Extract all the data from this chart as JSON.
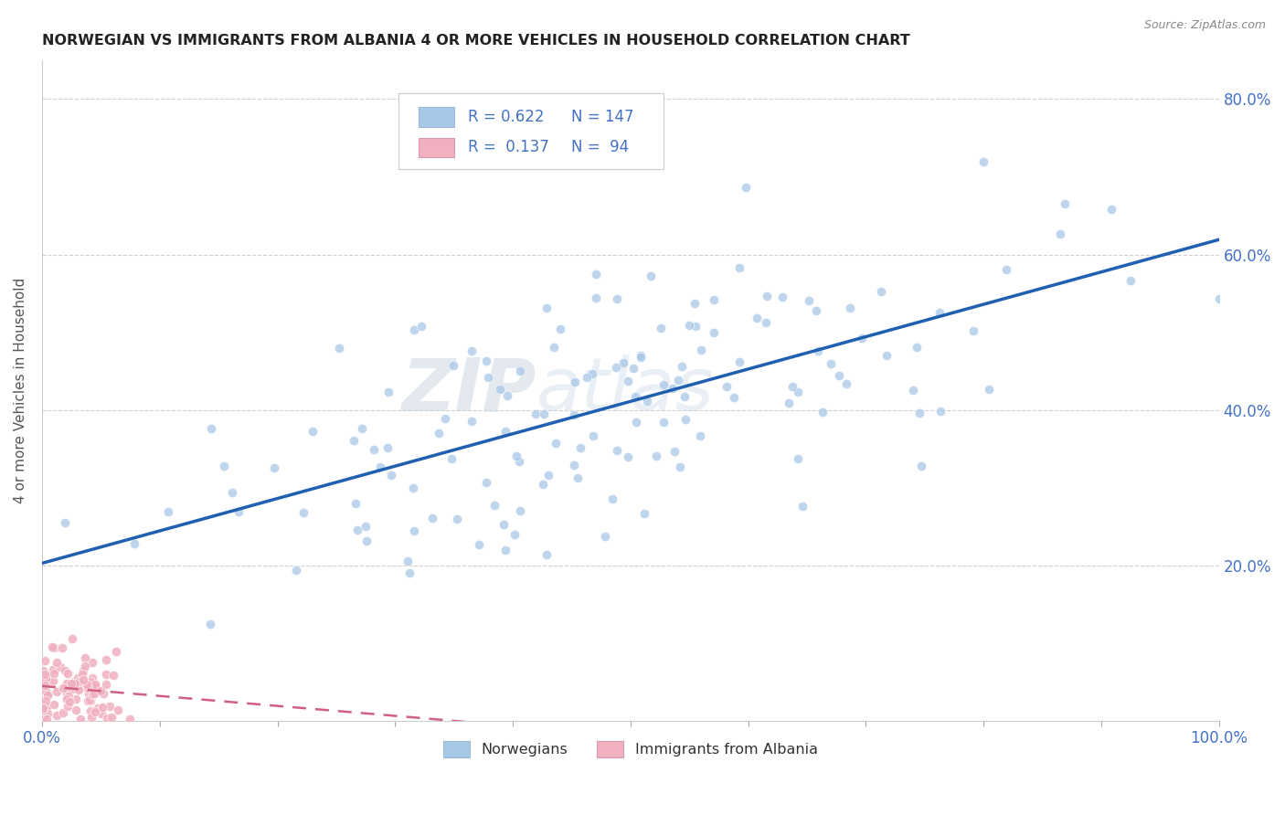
{
  "title": "NORWEGIAN VS IMMIGRANTS FROM ALBANIA 4 OR MORE VEHICLES IN HOUSEHOLD CORRELATION CHART",
  "source": "Source: ZipAtlas.com",
  "ylabel": "4 or more Vehicles in Household",
  "xlim": [
    0.0,
    1.0
  ],
  "ylim": [
    0.0,
    0.85
  ],
  "background_color": "#ffffff",
  "grid_color": "#d0d0d0",
  "watermark_text": "ZIPatlas",
  "legend_R1": "0.622",
  "legend_N1": "147",
  "legend_R2": "0.137",
  "legend_N2": "94",
  "blue_color": "#a8c8e8",
  "pink_color": "#f0b0c0",
  "blue_line_color": "#2060b0",
  "pink_line_color": "#d06080",
  "tick_label_color": "#4472c4",
  "title_color": "#333333",
  "nor_seed": 12345,
  "alb_seed": 67890
}
